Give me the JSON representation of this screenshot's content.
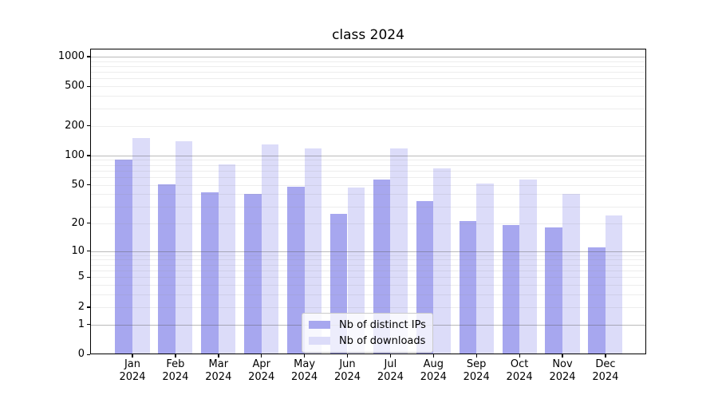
{
  "figure": {
    "title": "class 2024",
    "background": "#ffffff"
  },
  "legend": {
    "items": [
      {
        "label": "Nb of distinct IPs",
        "swatch_color": "#a7a7ef"
      },
      {
        "label": "Nb of downloads",
        "swatch_color": "#dcdcf9"
      }
    ]
  },
  "chart_data": {
    "type": "bar",
    "title": "class 2024",
    "yscale": "log1p",
    "ylim": [
      0,
      1200
    ],
    "grid": true,
    "legend_position": "lower center",
    "months": [
      "Jan",
      "Feb",
      "Mar",
      "Apr",
      "May",
      "Jun",
      "Jul",
      "Aug",
      "Sep",
      "Oct",
      "Nov",
      "Dec"
    ],
    "year": "2024",
    "categories": [
      "Jan 2024",
      "Feb 2024",
      "Mar 2024",
      "Apr 2024",
      "May 2024",
      "Jun 2024",
      "Jul 2024",
      "Aug 2024",
      "Sep 2024",
      "Oct 2024",
      "Nov 2024",
      "Dec 2024"
    ],
    "series": [
      {
        "name": "Nb of distinct IPs",
        "color": "#a7a7ef",
        "values": [
          90,
          51,
          42,
          40,
          48,
          25,
          57,
          34,
          21,
          19,
          18,
          11
        ]
      },
      {
        "name": "Nb of downloads",
        "color": "#dcdcf9",
        "values": [
          150,
          139,
          81,
          130,
          118,
          47,
          117,
          74,
          52,
          57,
          40,
          24
        ]
      }
    ],
    "y_tick_values": [
      0,
      1,
      2,
      5,
      10,
      20,
      50,
      100,
      200,
      500,
      1000
    ],
    "y_tick_labels": [
      "0",
      "1",
      "2",
      "5",
      "10",
      "20",
      "50",
      "100",
      "200",
      "500",
      "1000"
    ],
    "y_major_gridlines": [
      1,
      10,
      100,
      1000
    ],
    "y_minor_gridlines": [
      2,
      3,
      4,
      5,
      6,
      7,
      8,
      9,
      20,
      30,
      40,
      50,
      60,
      70,
      80,
      90,
      200,
      300,
      400,
      500,
      600,
      700,
      800,
      900
    ]
  }
}
